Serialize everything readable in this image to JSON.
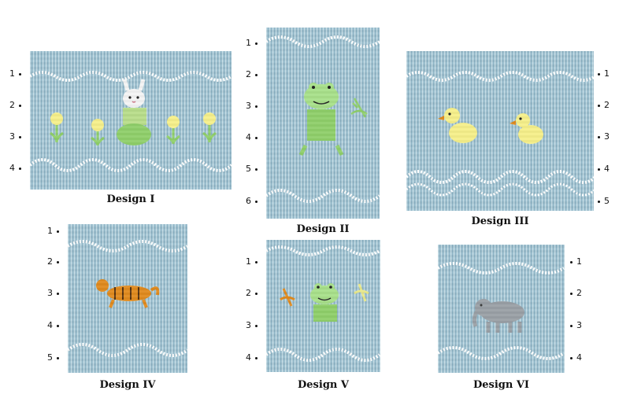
{
  "designs": [
    {
      "caption": "Design I",
      "rows": [
        "1",
        "2",
        "3",
        "4"
      ]
    },
    {
      "caption": "Design II",
      "rows": [
        "1",
        "2",
        "3",
        "4",
        "5",
        "6"
      ]
    },
    {
      "caption": "Design III",
      "rows": [
        "1",
        "2",
        "3",
        "4",
        "5"
      ]
    },
    {
      "caption": "Design IV",
      "rows": [
        "1",
        "2",
        "3",
        "4",
        "5"
      ]
    },
    {
      "caption": "Design V",
      "rows": [
        "1",
        "2",
        "3",
        "4"
      ]
    },
    {
      "caption": "Design VI",
      "rows": [
        "1",
        "2",
        "3",
        "4"
      ]
    }
  ],
  "colors": {
    "fabric": "#a8cbd9",
    "smocking_white": "#ffffff",
    "leaf_green": "#8fcf6a",
    "chick_yellow": "#f6ef8a",
    "tiger_orange": "#e08a1e",
    "elephant_gray": "#9aa0a6"
  }
}
